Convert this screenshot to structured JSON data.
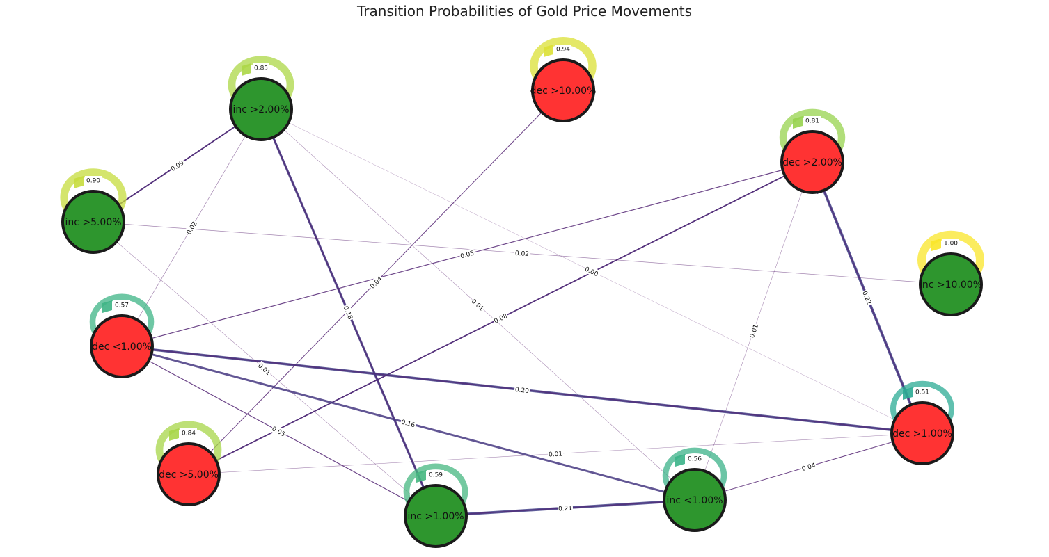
{
  "title": "Transition Probabilities of Gold Price Movements",
  "colors": {
    "increase_node": "#2e962e",
    "decrease_node": "#ff3333",
    "node_border": "#1a1a1a"
  },
  "nodes": [
    {
      "id": "inc2",
      "label": "inc >2.00%",
      "type": "increase",
      "self_loop": "0.85"
    },
    {
      "id": "dec10",
      "label": "dec >10.00%",
      "type": "decrease",
      "self_loop": "0.94"
    },
    {
      "id": "dec2",
      "label": "dec >2.00%",
      "type": "decrease",
      "self_loop": "0.81"
    },
    {
      "id": "inc5",
      "label": "inc >5.00%",
      "type": "increase",
      "self_loop": "0.90"
    },
    {
      "id": "inc10",
      "label": "inc >10.00%",
      "type": "increase",
      "self_loop": "1.00"
    },
    {
      "id": "decl1",
      "label": "dec <1.00%",
      "type": "decrease",
      "self_loop": "0.57"
    },
    {
      "id": "dec1",
      "label": "dec >1.00%",
      "type": "decrease",
      "self_loop": "0.51"
    },
    {
      "id": "dec5",
      "label": "dec >5.00%",
      "type": "decrease",
      "self_loop": "0.84"
    },
    {
      "id": "incl1",
      "label": "inc <1.00%",
      "type": "increase",
      "self_loop": "0.56"
    },
    {
      "id": "inc1",
      "label": "inc >1.00%",
      "type": "increase",
      "self_loop": "0.59"
    }
  ],
  "edges": [
    {
      "from": "inc5",
      "to": "inc2",
      "label": "0.09"
    },
    {
      "from": "inc2",
      "to": "inc5",
      "label": ""
    },
    {
      "from": "decl1",
      "to": "inc2",
      "label": "0.02"
    },
    {
      "from": "inc1",
      "to": "inc2",
      "label": "0.18"
    },
    {
      "from": "inc2",
      "to": "inc1",
      "label": ""
    },
    {
      "from": "incl1",
      "to": "inc2",
      "label": "0.01"
    },
    {
      "from": "dec1",
      "to": "inc2",
      "label": "0.00"
    },
    {
      "from": "dec5",
      "to": "dec10",
      "label": "0.04"
    },
    {
      "from": "decl1",
      "to": "dec2",
      "label": "0.05"
    },
    {
      "from": "dec5",
      "to": "dec2",
      "label": "0.08"
    },
    {
      "from": "dec2",
      "to": "dec5",
      "label": ""
    },
    {
      "from": "incl1",
      "to": "dec2",
      "label": "0.01"
    },
    {
      "from": "dec1",
      "to": "dec2",
      "label": "0.22"
    },
    {
      "from": "dec2",
      "to": "dec1",
      "label": ""
    },
    {
      "from": "inc5",
      "to": "inc10",
      "label": "0.02"
    },
    {
      "from": "dec1",
      "to": "decl1",
      "label": "0.20"
    },
    {
      "from": "decl1",
      "to": "dec1",
      "label": ""
    },
    {
      "from": "incl1",
      "to": "decl1",
      "label": "0.16"
    },
    {
      "from": "inc1",
      "to": "decl1",
      "label": "0.05"
    },
    {
      "from": "inc5",
      "to": "inc1",
      "label": "0.01"
    },
    {
      "from": "dec5",
      "to": "dec1",
      "label": "0.01"
    },
    {
      "from": "incl1",
      "to": "dec1",
      "label": "0.04"
    },
    {
      "from": "inc1",
      "to": "incl1",
      "label": "0.21"
    },
    {
      "from": "incl1",
      "to": "inc1",
      "label": ""
    }
  ]
}
